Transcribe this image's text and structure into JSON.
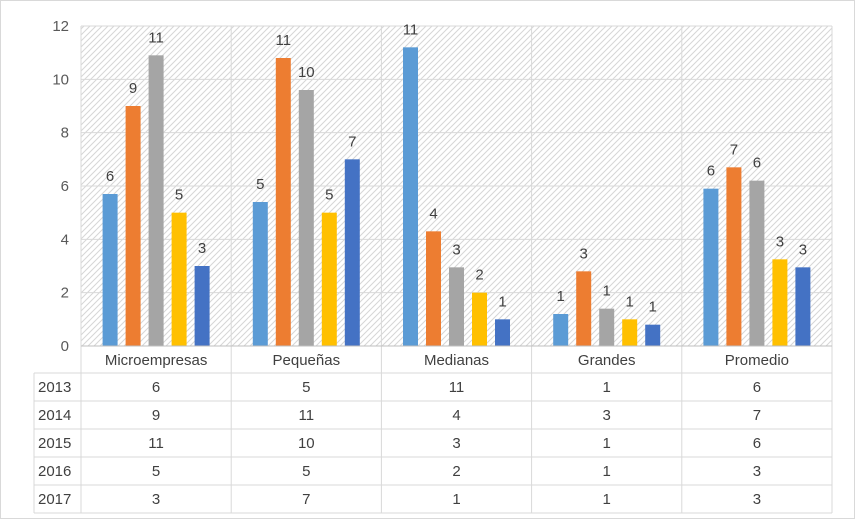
{
  "chart_data": {
    "type": "bar",
    "categories": [
      "Microempresas",
      "Pequeñas",
      "Medianas",
      "Grandes",
      "Promedio"
    ],
    "series": [
      {
        "name": "2013",
        "values": [
          5.7,
          5.4,
          11.2,
          1.2,
          5.9
        ],
        "labels": [
          "6",
          "5",
          "11",
          "1",
          "6"
        ],
        "color": "#5b9bd5"
      },
      {
        "name": "2014",
        "values": [
          9.0,
          10.8,
          4.3,
          2.8,
          6.7
        ],
        "labels": [
          "9",
          "11",
          "4",
          "3",
          "7"
        ],
        "color": "#ed7d31"
      },
      {
        "name": "2015",
        "values": [
          10.9,
          9.6,
          2.95,
          1.4,
          6.2
        ],
        "labels": [
          "11",
          "10",
          "3",
          "1",
          "6"
        ],
        "color": "#a5a5a5"
      },
      {
        "name": "2016",
        "values": [
          5.0,
          5.0,
          2.0,
          1.0,
          3.25
        ],
        "labels": [
          "5",
          "5",
          "2",
          "1",
          "3"
        ],
        "color": "#ffc000"
      },
      {
        "name": "2017",
        "values": [
          3.0,
          7.0,
          1.0,
          0.8,
          2.95
        ],
        "labels": [
          "3",
          "7",
          "1",
          "1",
          "3"
        ],
        "color": "#4472c4"
      }
    ],
    "yticks": [
      "0",
      "2",
      "4",
      "6",
      "8",
      "10",
      "12"
    ],
    "ylim": [
      0,
      12
    ],
    "title": "",
    "xlabel": "",
    "ylabel": "",
    "grid": true,
    "data_table": true,
    "legend": "in data table"
  }
}
